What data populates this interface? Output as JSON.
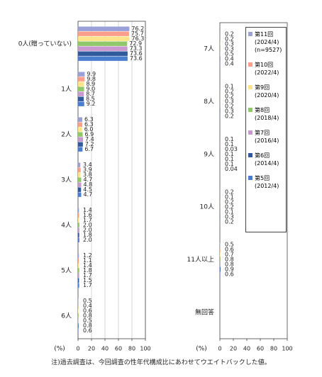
{
  "note": "注)過去調査は、今回調査の性年代構成比にあわせてウエイトバックした値。",
  "chart_data": [
    {
      "type": "bar",
      "orientation": "horizontal",
      "x_label": "(%)",
      "categories": [
        "0人(贈っていない)",
        "1人",
        "2人",
        "3人",
        "4人",
        "5人",
        "6人"
      ],
      "xlim": [
        0,
        100
      ],
      "xticks": [
        0,
        20,
        40,
        60,
        80,
        100
      ],
      "grid": true,
      "series": [
        {
          "color": "#9aa0d8",
          "values": [
            76.2,
            9.9,
            6.3,
            3.4,
            1.4,
            1.2,
            0.5
          ],
          "value_labels": [
            "76.2",
            "9.9",
            "6.3",
            "3.4",
            "1.4",
            "1.2",
            "0.5"
          ]
        },
        {
          "color": "#ff9e8a",
          "values": [
            75.7,
            9.8,
            6.3,
            3.9,
            1.6,
            1.1,
            0.4
          ],
          "value_labels": [
            "75.7",
            "9.8",
            "6.3",
            "3.9",
            "1.6",
            "1.1",
            "0.4"
          ]
        },
        {
          "color": "#ffe48a",
          "values": [
            76.3,
            8.9,
            6.0,
            3.8,
            1.7,
            1.4,
            0.6
          ],
          "value_labels": [
            "76.3",
            "8.9",
            "6.0",
            "3.8",
            "1.7",
            "1.4",
            "0.6"
          ]
        },
        {
          "color": "#8fc86a",
          "values": [
            72.9,
            9.0,
            6.9,
            4.7,
            2.0,
            1.8,
            0.8
          ],
          "value_labels": [
            "72.9",
            "9.0",
            "6.9",
            "4.7",
            "2.0",
            "1.8",
            "0.8"
          ]
        },
        {
          "color": "#c998d0",
          "values": [
            73.3,
            8.7,
            7.4,
            4.8,
            2.0,
            1.7,
            0.5
          ],
          "value_labels": [
            "73.3",
            "8.7",
            "7.4",
            "4.8",
            "2.0",
            "1.7",
            "0.5"
          ]
        },
        {
          "color": "#2f5a9c",
          "values": [
            73.6,
            8.5,
            7.2,
            4.5,
            1.8,
            1.5,
            0.8
          ],
          "value_labels": [
            "73.6",
            "8.5",
            "7.2",
            "4.5",
            "1.8",
            "1.5",
            "0.8"
          ]
        },
        {
          "color": "#4a7fcf",
          "values": [
            73.6,
            9.2,
            6.7,
            4.7,
            2.0,
            1.7,
            0.6
          ],
          "value_labels": [
            "73.6",
            "9.2",
            "6.7",
            "4.7",
            "2.0",
            "1.7",
            "0.6"
          ]
        }
      ]
    },
    {
      "type": "bar",
      "orientation": "horizontal",
      "x_label": "(%)",
      "categories": [
        "7人",
        "8人",
        "9人",
        "10人",
        "11人以上",
        "無回答"
      ],
      "xlim": [
        0,
        100
      ],
      "xticks": [
        0,
        20,
        40,
        60,
        80,
        100
      ],
      "grid": false,
      "series": [
        {
          "name": "第11回 (2024/4) (n=9527)",
          "color": "#9aa0d8",
          "values": [
            0.2,
            0.1,
            0.1,
            0.2,
            0.5,
            null
          ],
          "value_labels": [
            "0.2",
            "0.1",
            "0.1",
            "0.2",
            "0.5",
            null
          ]
        },
        {
          "name": "第10回 (2022/4)",
          "color": "#ff9e8a",
          "values": [
            0.2,
            0.2,
            0.1,
            0.1,
            0.6,
            null
          ],
          "value_labels": [
            "0.2",
            "0.2",
            "0.1",
            "0.1",
            "0.6",
            null
          ]
        },
        {
          "name": "第9回 (2020/4)",
          "color": "#ffe48a",
          "values": [
            0.3,
            0.2,
            0.03,
            0.2,
            0.7,
            null
          ],
          "value_labels": [
            "0.3",
            "0.2",
            "0.03",
            "0.2",
            "0.7",
            null
          ]
        },
        {
          "name": "第8回 (2018/4)",
          "color": "#8fc86a",
          "values": [
            0.3,
            0.3,
            0.1,
            0.2,
            0.8,
            null
          ],
          "value_labels": [
            "0.3",
            "0.3",
            "0.1",
            "0.2",
            "0.8",
            null
          ]
        },
        {
          "name": "第7回 (2016/4)",
          "color": "#c998d0",
          "values": [
            0.5,
            0.2,
            0.1,
            0.1,
            0.8,
            null
          ],
          "value_labels": [
            "0.5",
            "0.2",
            "0.1",
            "0.1",
            "0.8",
            null
          ]
        },
        {
          "name": "第6回 (2014/4)",
          "color": "#2f5a9c",
          "values": [
            0.4,
            0.3,
            0.1,
            0.3,
            0.9,
            null
          ],
          "value_labels": [
            "0.4",
            "0.3",
            "0.1",
            "0.3",
            "0.9",
            null
          ]
        },
        {
          "name": "第5回 (2012/4)",
          "color": "#4a7fcf",
          "values": [
            0.4,
            0.2,
            0.04,
            0.2,
            0.6,
            null
          ],
          "value_labels": [
            "0.4",
            "0.2",
            "0.04",
            "0.2",
            "0.6",
            null
          ]
        }
      ]
    }
  ]
}
